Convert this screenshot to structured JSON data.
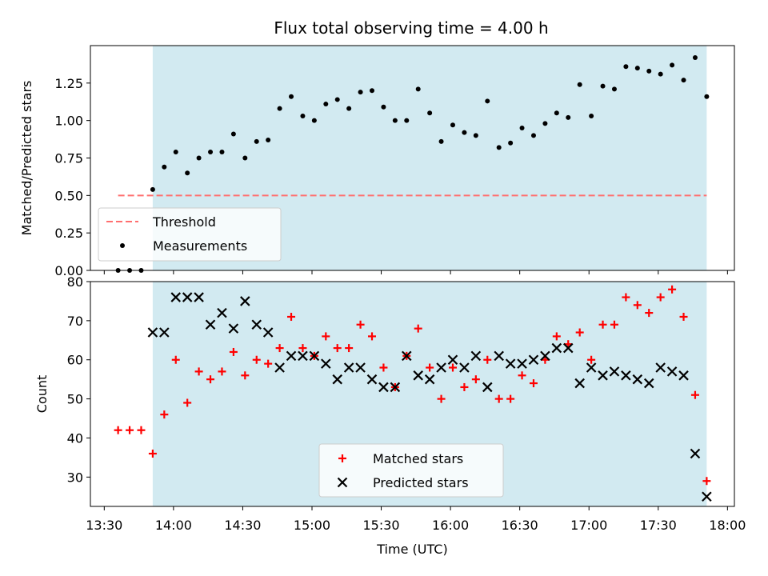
{
  "colors": {
    "shade": "#add8e6",
    "threshold": "#ff6f6f",
    "measurement": "#000000",
    "matched": "#ff0000",
    "predicted": "#000000"
  },
  "chart_data": [
    {
      "type": "scatter",
      "title": "Flux total observing time = 4.00 h",
      "xlabel": "",
      "ylabel": "Matched/Predicted stars",
      "xlim": [
        "13:24",
        "18:03"
      ],
      "ylim": [
        0,
        1.5
      ],
      "yticks": [
        "0.00",
        "0.25",
        "0.50",
        "0.75",
        "1.00",
        "1.25"
      ],
      "shaded_interval": [
        "13:51",
        "17:51"
      ],
      "legend_position": "lower-left",
      "series": [
        {
          "name": "Threshold",
          "style": "dashed-line",
          "x": [
            "13:36",
            "17:51"
          ],
          "y": [
            0.5,
            0.5
          ]
        },
        {
          "name": "Measurements",
          "style": "dot",
          "x": [
            "13:36",
            "13:41",
            "13:46",
            "13:51",
            "13:56",
            "14:01",
            "14:06",
            "14:11",
            "14:16",
            "14:21",
            "14:26",
            "14:31",
            "14:36",
            "14:41",
            "14:46",
            "14:51",
            "14:56",
            "15:01",
            "15:06",
            "15:11",
            "15:16",
            "15:21",
            "15:26",
            "15:31",
            "15:36",
            "15:41",
            "15:46",
            "15:51",
            "15:56",
            "16:01",
            "16:06",
            "16:11",
            "16:16",
            "16:21",
            "16:26",
            "16:31",
            "16:36",
            "16:41",
            "16:46",
            "16:51",
            "16:56",
            "17:01",
            "17:06",
            "17:11",
            "17:16",
            "17:21",
            "17:26",
            "17:31",
            "17:36",
            "17:41",
            "17:46",
            "17:51"
          ],
          "y": [
            0.0,
            0.0,
            0.0,
            0.54,
            0.69,
            0.79,
            0.65,
            0.75,
            0.79,
            0.79,
            0.91,
            0.75,
            0.86,
            0.87,
            1.08,
            1.16,
            1.03,
            1.0,
            1.11,
            1.14,
            1.08,
            1.19,
            1.2,
            1.09,
            1.0,
            1.0,
            1.21,
            1.05,
            0.86,
            0.97,
            0.92,
            0.9,
            1.13,
            0.82,
            0.85,
            0.95,
            0.9,
            0.98,
            1.05,
            1.02,
            1.24,
            1.03,
            1.23,
            1.21,
            1.36,
            1.35,
            1.33,
            1.31,
            1.37,
            1.27,
            1.42,
            1.16
          ]
        }
      ]
    },
    {
      "type": "scatter",
      "title": "",
      "xlabel": "Time (UTC)",
      "ylabel": "Count",
      "xlim": [
        "13:24",
        "18:03"
      ],
      "ylim": [
        22.5,
        80
      ],
      "yticks": [
        "30",
        "40",
        "50",
        "60",
        "70",
        "80"
      ],
      "xticks": [
        "13:30",
        "14:00",
        "14:30",
        "15:00",
        "15:30",
        "16:00",
        "16:30",
        "17:00",
        "17:30",
        "18:00"
      ],
      "shaded_interval": [
        "13:51",
        "17:51"
      ],
      "legend_position": "lower-center",
      "series": [
        {
          "name": "Matched stars",
          "style": "plus",
          "x": [
            "13:36",
            "13:41",
            "13:46",
            "13:51",
            "13:56",
            "14:01",
            "14:06",
            "14:11",
            "14:16",
            "14:21",
            "14:26",
            "14:31",
            "14:36",
            "14:41",
            "14:46",
            "14:51",
            "14:56",
            "15:01",
            "15:06",
            "15:11",
            "15:16",
            "15:21",
            "15:26",
            "15:31",
            "15:36",
            "15:41",
            "15:46",
            "15:51",
            "15:56",
            "16:01",
            "16:06",
            "16:11",
            "16:16",
            "16:21",
            "16:26",
            "16:31",
            "16:36",
            "16:41",
            "16:46",
            "16:51",
            "16:56",
            "17:01",
            "17:06",
            "17:11",
            "17:16",
            "17:21",
            "17:26",
            "17:31",
            "17:36",
            "17:41",
            "17:46",
            "17:51"
          ],
          "y": [
            42,
            42,
            42,
            36,
            46,
            60,
            49,
            57,
            55,
            57,
            62,
            56,
            60,
            59,
            63,
            71,
            63,
            61,
            66,
            63,
            63,
            69,
            66,
            58,
            53,
            61,
            68,
            58,
            50,
            58,
            53,
            55,
            60,
            50,
            50,
            56,
            54,
            60,
            66,
            64,
            67,
            60,
            69,
            69,
            76,
            74,
            72,
            76,
            78,
            71,
            51,
            29
          ]
        },
        {
          "name": "Predicted stars",
          "style": "x",
          "x": [
            "13:51",
            "13:56",
            "14:01",
            "14:06",
            "14:11",
            "14:16",
            "14:21",
            "14:26",
            "14:31",
            "14:36",
            "14:41",
            "14:46",
            "14:51",
            "14:56",
            "15:01",
            "15:06",
            "15:11",
            "15:16",
            "15:21",
            "15:26",
            "15:31",
            "15:36",
            "15:41",
            "15:46",
            "15:51",
            "15:56",
            "16:01",
            "16:06",
            "16:11",
            "16:16",
            "16:21",
            "16:26",
            "16:31",
            "16:36",
            "16:41",
            "16:46",
            "16:51",
            "16:56",
            "17:01",
            "17:06",
            "17:11",
            "17:16",
            "17:21",
            "17:26",
            "17:31",
            "17:36",
            "17:41",
            "17:46",
            "17:51"
          ],
          "y": [
            67,
            67,
            76,
            76,
            76,
            69,
            72,
            68,
            75,
            69,
            67,
            58,
            61,
            61,
            61,
            59,
            55,
            58,
            58,
            55,
            53,
            53,
            61,
            56,
            55,
            58,
            60,
            58,
            61,
            53,
            61,
            59,
            59,
            60,
            61,
            63,
            63,
            54,
            58,
            56,
            57,
            56,
            55,
            54,
            58,
            57,
            56,
            36,
            25
          ]
        }
      ]
    }
  ]
}
